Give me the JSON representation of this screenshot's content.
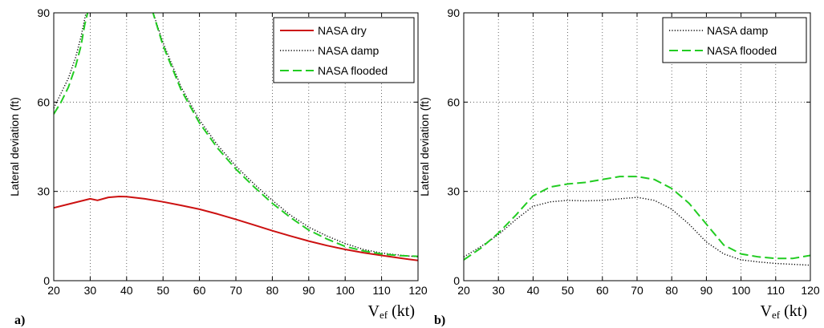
{
  "chart_data": [
    {
      "type": "line",
      "panel_label": "a)",
      "ylabel": "Lateral deviation (ft)",
      "xlabel_main": "V",
      "xlabel_sub": "ef",
      "xlabel_unit": " (kt)",
      "xlim": [
        20,
        120
      ],
      "ylim": [
        0,
        90
      ],
      "xticks": [
        20,
        30,
        40,
        50,
        60,
        70,
        80,
        90,
        100,
        110,
        120
      ],
      "yticks": [
        0,
        30,
        60,
        90
      ],
      "grid": true,
      "legend_position": "top-right",
      "series": [
        {
          "name": "NASA dry",
          "color": "#cc1111",
          "style": "solid",
          "x": [
            20,
            25,
            30,
            32,
            35,
            38,
            40,
            45,
            50,
            55,
            60,
            65,
            70,
            75,
            80,
            85,
            90,
            95,
            100,
            105,
            110,
            115,
            120
          ],
          "y": [
            24.5,
            26,
            27.5,
            27,
            28,
            28.3,
            28.2,
            27.5,
            26.5,
            25.3,
            24,
            22.4,
            20.6,
            18.7,
            16.8,
            15,
            13.3,
            11.8,
            10.5,
            9.4,
            8.5,
            7.6,
            6.8
          ]
        },
        {
          "name": "NASA damp",
          "color": "#000000",
          "style": "dotted",
          "segments": [
            {
              "x": [
                20,
                22,
                24,
                26,
                27.5,
                28.5,
                29
              ],
              "y": [
                58,
                63,
                68,
                75,
                82,
                88,
                91
              ]
            },
            {
              "x": [
                47,
                50,
                55,
                60,
                65,
                70,
                75,
                80,
                85,
                90,
                95,
                100,
                105,
                110,
                115,
                120
              ],
              "y": [
                91,
                80,
                65,
                54,
                45.5,
                38.5,
                32.5,
                27,
                22,
                18,
                15,
                12.5,
                10.5,
                9.3,
                8.6,
                8
              ]
            }
          ]
        },
        {
          "name": "NASA flooded",
          "color": "#22cc22",
          "style": "dashed",
          "segments": [
            {
              "x": [
                20,
                22,
                24,
                26,
                27.5,
                28.5,
                29.5
              ],
              "y": [
                56,
                60,
                65,
                72,
                79,
                86,
                91
              ]
            },
            {
              "x": [
                47,
                50,
                55,
                60,
                65,
                70,
                75,
                80,
                85,
                90,
                95,
                100,
                105,
                110,
                115,
                120
              ],
              "y": [
                91,
                79,
                64,
                53,
                44.5,
                37.5,
                31.5,
                26,
                21.2,
                17,
                14,
                11.5,
                10,
                9,
                8.4,
                8.2
              ]
            }
          ]
        }
      ]
    },
    {
      "type": "line",
      "panel_label": "b)",
      "ylabel": "Lateral deviation (ft)",
      "xlabel_main": "V",
      "xlabel_sub": "ef",
      "xlabel_unit": " (kt)",
      "xlim": [
        20,
        120
      ],
      "ylim": [
        0,
        90
      ],
      "xticks": [
        20,
        30,
        40,
        50,
        60,
        70,
        80,
        90,
        100,
        110,
        120
      ],
      "yticks": [
        0,
        30,
        60,
        90
      ],
      "grid": true,
      "legend_position": "top-right",
      "series": [
        {
          "name": "NASA damp",
          "color": "#000000",
          "style": "dotted",
          "x": [
            20,
            25,
            30,
            35,
            40,
            45,
            50,
            55,
            60,
            65,
            70,
            75,
            80,
            85,
            90,
            95,
            100,
            105,
            110,
            115,
            120
          ],
          "y": [
            8,
            11.5,
            15.5,
            20.5,
            25,
            26.5,
            27,
            26.8,
            27,
            27.5,
            28,
            27,
            24,
            19,
            13,
            9,
            7,
            6.3,
            5.8,
            5.5,
            5.2
          ]
        },
        {
          "name": "NASA flooded",
          "color": "#22cc22",
          "style": "dashed",
          "x": [
            20,
            25,
            30,
            35,
            40,
            45,
            50,
            55,
            60,
            65,
            70,
            75,
            80,
            85,
            90,
            95,
            100,
            105,
            110,
            115,
            120
          ],
          "y": [
            7,
            11,
            16,
            22,
            28.5,
            31.5,
            32.5,
            33,
            34,
            35,
            35,
            34,
            31,
            26,
            19,
            12,
            9,
            8,
            7.5,
            7.5,
            8.5
          ]
        }
      ]
    }
  ]
}
